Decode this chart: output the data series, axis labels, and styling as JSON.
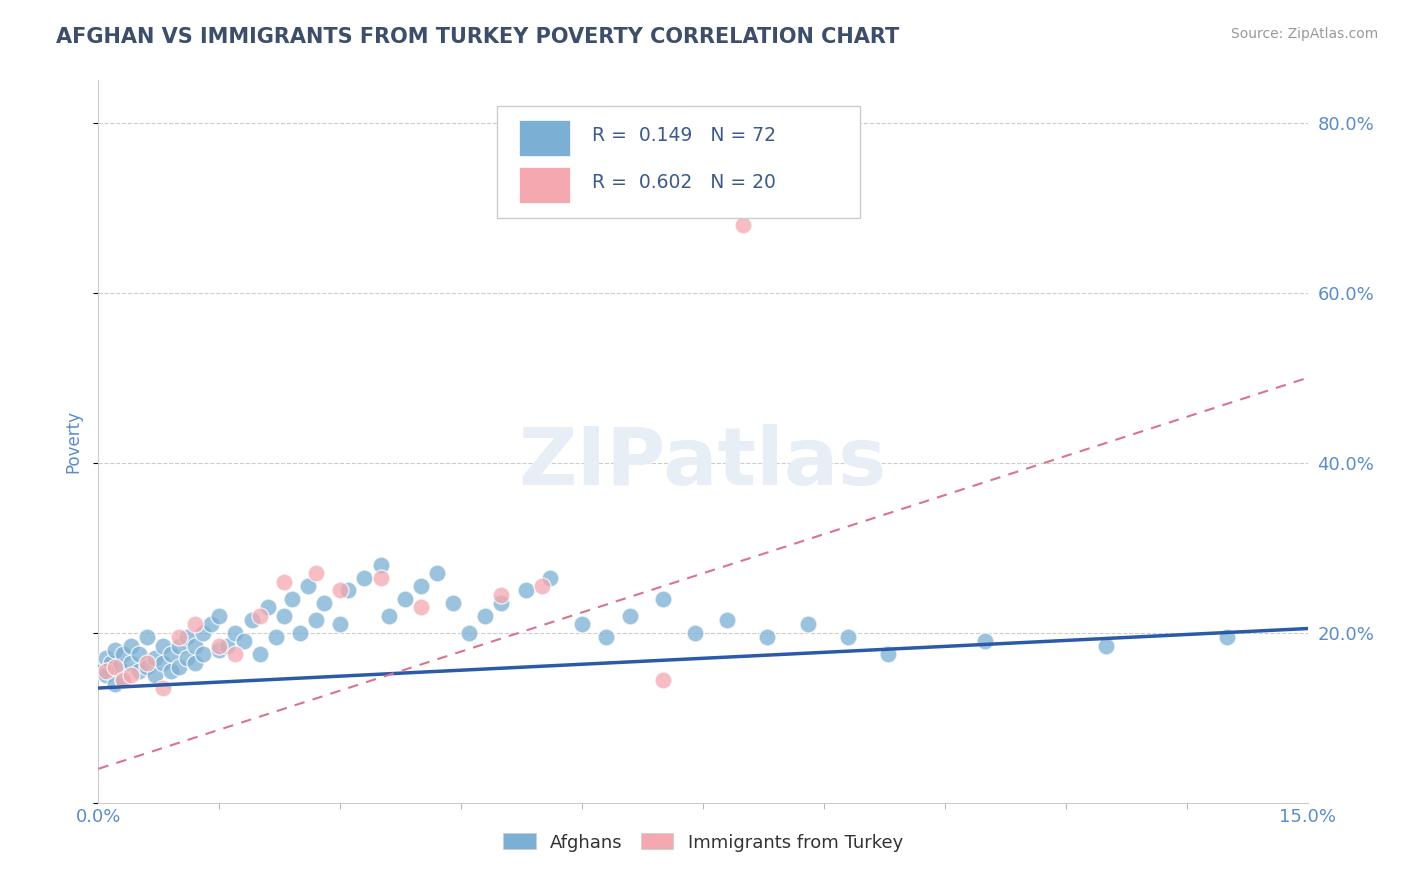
{
  "title": "AFGHAN VS IMMIGRANTS FROM TURKEY POVERTY CORRELATION CHART",
  "source_text": "Source: ZipAtlas.com",
  "ylabel": "Poverty",
  "xlim": [
    0.0,
    0.15
  ],
  "ylim": [
    0.0,
    0.85
  ],
  "yticks": [
    0.0,
    0.2,
    0.4,
    0.6,
    0.8
  ],
  "ytick_labels": [
    "",
    "20.0%",
    "40.0%",
    "60.0%",
    "80.0%"
  ],
  "xtick_labels": [
    "0.0%",
    "15.0%"
  ],
  "legend_r1": "R =  0.149",
  "legend_n1": "N = 72",
  "legend_r2": "R =  0.602",
  "legend_n2": "N = 20",
  "group1_label": "Afghans",
  "group2_label": "Immigrants from Turkey",
  "blue_color": "#7BAFD4",
  "pink_color": "#F4A9B0",
  "blue_line_color": "#2B5BA8",
  "pink_line_color": "#D9758A",
  "title_color": "#3D4E6B",
  "axis_label_color": "#5B8CC8",
  "legend_text_color": "#3D5A8A",
  "watermark_color": "#E8EEF5",
  "watermark": "ZIPatlas",
  "af_line_x0": 0.0,
  "af_line_y0": 0.135,
  "af_line_x1": 0.15,
  "af_line_y1": 0.205,
  "tr_line_x0": 0.0,
  "tr_line_y0": 0.04,
  "tr_line_x1": 0.15,
  "tr_line_y1": 0.5,
  "afghans_x": [
    0.0005,
    0.001,
    0.0015,
    0.001,
    0.002,
    0.002,
    0.0025,
    0.003,
    0.003,
    0.004,
    0.004,
    0.005,
    0.005,
    0.006,
    0.006,
    0.007,
    0.007,
    0.008,
    0.008,
    0.009,
    0.009,
    0.01,
    0.01,
    0.011,
    0.011,
    0.012,
    0.012,
    0.013,
    0.013,
    0.014,
    0.015,
    0.015,
    0.016,
    0.017,
    0.018,
    0.019,
    0.02,
    0.021,
    0.022,
    0.023,
    0.024,
    0.025,
    0.026,
    0.027,
    0.028,
    0.03,
    0.031,
    0.033,
    0.035,
    0.036,
    0.038,
    0.04,
    0.042,
    0.044,
    0.046,
    0.048,
    0.05,
    0.053,
    0.056,
    0.06,
    0.063,
    0.066,
    0.07,
    0.074,
    0.078,
    0.083,
    0.088,
    0.093,
    0.098,
    0.11,
    0.125,
    0.14
  ],
  "afghans_y": [
    0.155,
    0.17,
    0.165,
    0.15,
    0.18,
    0.14,
    0.16,
    0.175,
    0.145,
    0.165,
    0.185,
    0.155,
    0.175,
    0.16,
    0.195,
    0.15,
    0.17,
    0.165,
    0.185,
    0.155,
    0.175,
    0.16,
    0.185,
    0.17,
    0.195,
    0.165,
    0.185,
    0.175,
    0.2,
    0.21,
    0.18,
    0.22,
    0.185,
    0.2,
    0.19,
    0.215,
    0.175,
    0.23,
    0.195,
    0.22,
    0.24,
    0.2,
    0.255,
    0.215,
    0.235,
    0.21,
    0.25,
    0.265,
    0.28,
    0.22,
    0.24,
    0.255,
    0.27,
    0.235,
    0.2,
    0.22,
    0.235,
    0.25,
    0.265,
    0.21,
    0.195,
    0.22,
    0.24,
    0.2,
    0.215,
    0.195,
    0.21,
    0.195,
    0.175,
    0.19,
    0.185,
    0.195
  ],
  "turkey_x": [
    0.001,
    0.002,
    0.003,
    0.004,
    0.006,
    0.008,
    0.01,
    0.012,
    0.015,
    0.017,
    0.02,
    0.023,
    0.027,
    0.03,
    0.035,
    0.04,
    0.05,
    0.055,
    0.07,
    0.08
  ],
  "turkey_y": [
    0.155,
    0.16,
    0.145,
    0.15,
    0.165,
    0.135,
    0.195,
    0.21,
    0.185,
    0.175,
    0.22,
    0.26,
    0.27,
    0.25,
    0.265,
    0.23,
    0.245,
    0.255,
    0.145,
    0.68
  ]
}
